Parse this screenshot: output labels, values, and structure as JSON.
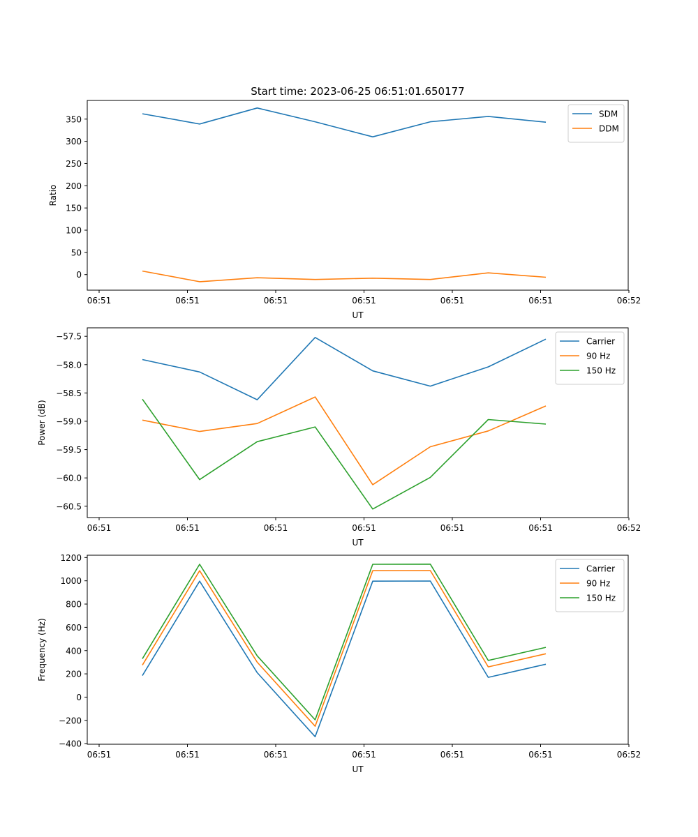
{
  "title": "Start time: 2023-06-25 06:51:01.650177",
  "chart_data": [
    {
      "type": "line",
      "xlabel": "UT",
      "ylabel": "Ratio",
      "x_tick_labels": [
        "06:51",
        "06:51",
        "06:51",
        "06:51",
        "06:51",
        "06:51",
        "06:52"
      ],
      "ylim": [
        -35,
        392
      ],
      "y_ticks": [
        0,
        50,
        100,
        150,
        200,
        250,
        300,
        350
      ],
      "grid": false,
      "legend": "top-right",
      "series": [
        {
          "name": "SDM",
          "color": "#1f77b4",
          "values": [
            362,
            339,
            375,
            344,
            310,
            344,
            356,
            343
          ]
        },
        {
          "name": "DDM",
          "color": "#ff7f0e",
          "values": [
            8,
            -16,
            -7,
            -11,
            -8,
            -11,
            4,
            -6
          ]
        }
      ]
    },
    {
      "type": "line",
      "xlabel": "UT",
      "ylabel": "Power (dB)",
      "x_tick_labels": [
        "06:51",
        "06:51",
        "06:51",
        "06:51",
        "06:51",
        "06:51",
        "06:52"
      ],
      "ylim": [
        -60.7,
        -57.35
      ],
      "y_ticks": [
        -60.5,
        -60.0,
        -59.5,
        -59.0,
        -58.5,
        -58.0,
        -57.5
      ],
      "y_tick_labels": [
        "−60.5",
        "−60.0",
        "−59.5",
        "−59.0",
        "−58.5",
        "−58.0",
        "−57.5"
      ],
      "grid": false,
      "legend": "top-right",
      "series": [
        {
          "name": "Carrier",
          "color": "#1f77b4",
          "values": [
            -57.91,
            -58.13,
            -58.62,
            -57.52,
            -58.11,
            -58.38,
            -58.04,
            -57.55
          ]
        },
        {
          "name": "90 Hz",
          "color": "#ff7f0e",
          "values": [
            -58.98,
            -59.18,
            -59.04,
            -58.57,
            -60.12,
            -59.45,
            -59.17,
            -58.73
          ]
        },
        {
          "name": "150 Hz",
          "color": "#2ca02c",
          "values": [
            -58.61,
            -60.03,
            -59.36,
            -59.1,
            -60.55,
            -59.99,
            -58.97,
            -59.05
          ]
        }
      ]
    },
    {
      "type": "line",
      "xlabel": "UT",
      "ylabel": "Frequency (Hz)",
      "x_tick_labels": [
        "06:51",
        "06:51",
        "06:51",
        "06:51",
        "06:51",
        "06:51",
        "06:52"
      ],
      "ylim": [
        -405,
        1220
      ],
      "y_ticks": [
        -400,
        -200,
        0,
        200,
        400,
        600,
        800,
        1000,
        1200
      ],
      "y_tick_labels": [
        "−400",
        "−200",
        "0",
        "200",
        "400",
        "600",
        "800",
        "1000",
        "1200"
      ],
      "grid": false,
      "legend": "top-right",
      "series": [
        {
          "name": "Carrier",
          "color": "#1f77b4",
          "values": [
            185,
            997,
            210,
            -340,
            997,
            998,
            170,
            283
          ]
        },
        {
          "name": "90 Hz",
          "color": "#ff7f0e",
          "values": [
            275,
            1087,
            300,
            -250,
            1087,
            1088,
            260,
            373
          ]
        },
        {
          "name": "150 Hz",
          "color": "#2ca02c",
          "values": [
            330,
            1142,
            355,
            -195,
            1142,
            1143,
            315,
            428
          ]
        }
      ]
    }
  ]
}
